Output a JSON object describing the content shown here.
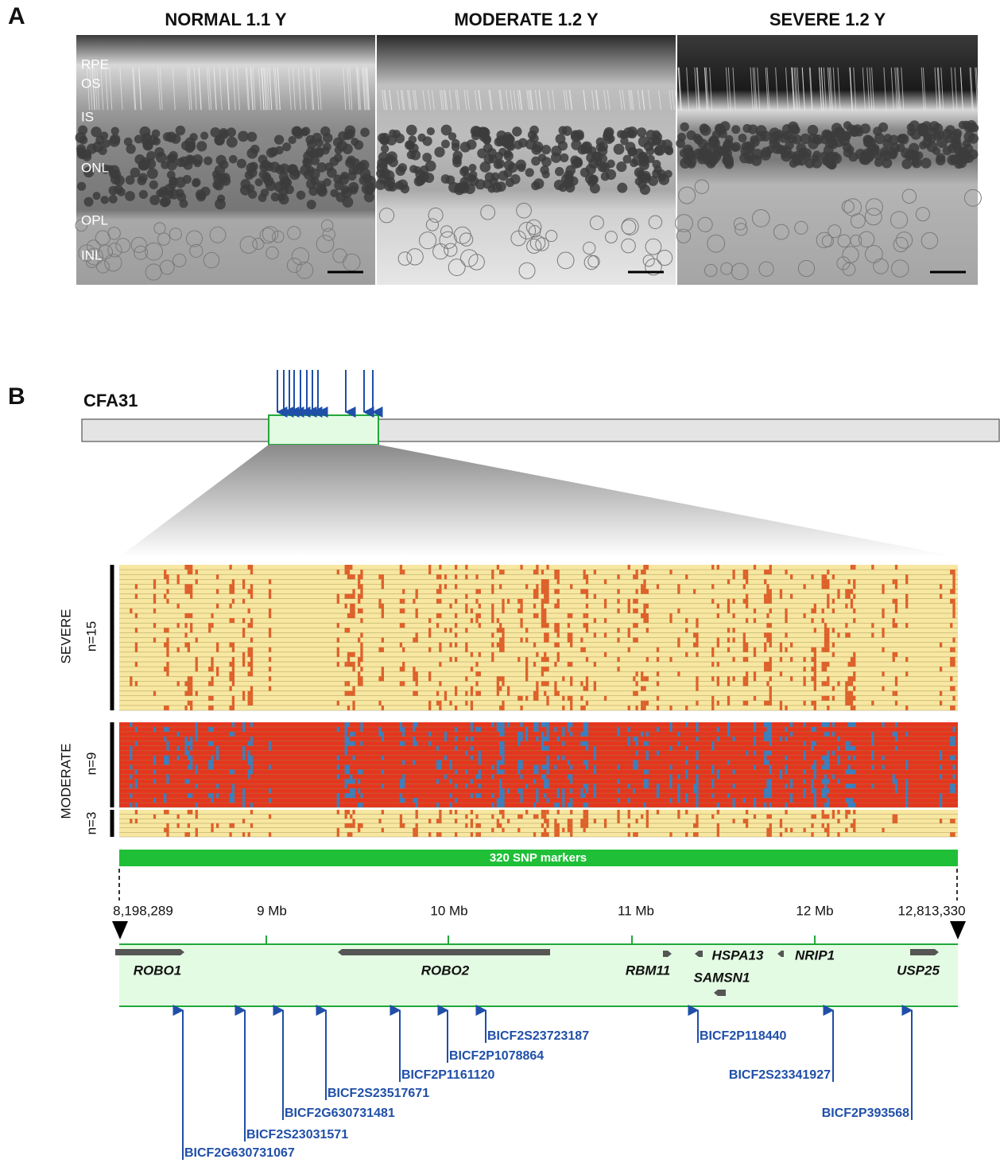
{
  "panel_a": {
    "label": "A",
    "panels": [
      "NORMAL 1.1 Y",
      "MODERATE 1.2 Y",
      "SEVERE 1.2 Y"
    ],
    "layers": [
      "RPE",
      "OS",
      "IS",
      "ONL",
      "OPL",
      "INL"
    ]
  },
  "panel_b": {
    "label": "B",
    "chromosome": "CFA31",
    "groups": [
      {
        "label": "SEVERE",
        "counts": [
          "n=15"
        ]
      },
      {
        "label": "MODERATE",
        "counts": [
          "n=9",
          "n=3"
        ]
      }
    ],
    "snp_bar": "320 SNP markers",
    "axis_labels": [
      "8,198,289",
      "9 Mb",
      "10 Mb",
      "11 Mb",
      "12 Mb",
      "12,813,330"
    ],
    "genes": [
      "ROBO1",
      "ROBO2",
      "RBM11",
      "HSPA13",
      "NRIP1",
      "SAMSN1",
      "USP25"
    ],
    "markers": [
      "BICF2G630731067",
      "BICF2S23031571",
      "BICF2G630731481",
      "BICF2S23517671",
      "BICF2P1161120",
      "BICF2P1078864",
      "BICF2S23723187",
      "BICF2P118440",
      "BICF2S23341927",
      "BICF2P393568"
    ]
  }
}
